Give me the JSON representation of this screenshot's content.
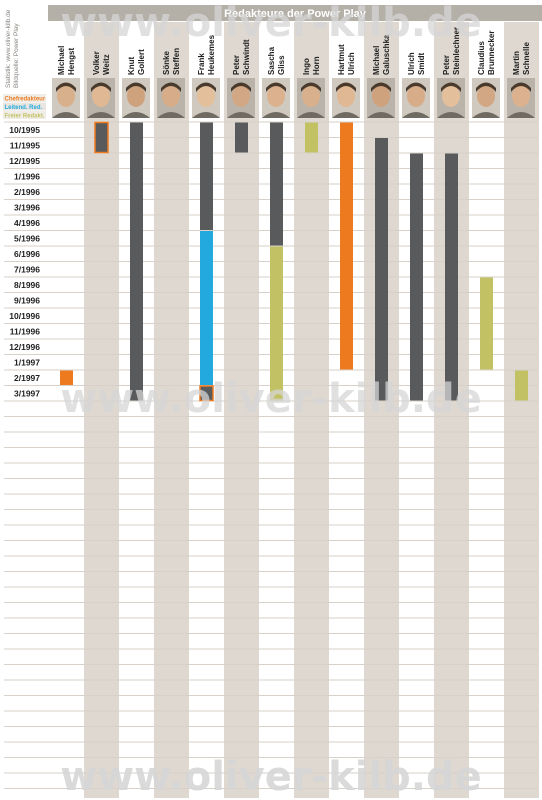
{
  "colors": {
    "column": "#ded8d0",
    "header_bg": "#b4b0a8",
    "rule": "#d7d1c9",
    "chefredakteur": "#ee7a1f",
    "leitender": "#23a9dd",
    "freier": "#c2c265",
    "redakteur": "#595a5c",
    "watermark": "#d6d6d6"
  },
  "credits": {
    "line1": "Statistik: www.oliver-kilb.de",
    "line2": "Bildquelle: Power Play"
  },
  "watermark": "www.oliver-kilb.de",
  "chart_data": {
    "type": "table",
    "title": "Redakteure der Power Play",
    "legend": [
      {
        "key": "chefredakteur",
        "label": "Chefredakteur",
        "color": "#ee7a1f"
      },
      {
        "key": "leitender",
        "label": "Leitend. Red.",
        "color": "#23a9dd"
      },
      {
        "key": "freier",
        "label": "Freier Redakt.",
        "color": "#c2c265"
      }
    ],
    "months": [
      "10/1995",
      "11/1995",
      "12/1995",
      "1/1996",
      "2/1996",
      "3/1996",
      "4/1996",
      "5/1996",
      "6/1996",
      "7/1996",
      "8/1996",
      "9/1996",
      "10/1996",
      "11/1996",
      "12/1996",
      "1/1997",
      "2/1997",
      "3/1997"
    ],
    "editors": [
      {
        "first": "Michael",
        "last": "Hengst",
        "spans": [
          {
            "from": "2/1997",
            "to": "2/1997",
            "role": "chefredakteur"
          }
        ]
      },
      {
        "first": "Volker",
        "last": "Weitz",
        "spans": [
          {
            "from": "10/1995",
            "to": "11/1995",
            "role": "redakteur",
            "outline": "chefredakteur"
          }
        ]
      },
      {
        "first": "Knut",
        "last": "Gollert",
        "spans": [
          {
            "from": "10/1995",
            "to": "3/1997",
            "role": "redakteur"
          }
        ]
      },
      {
        "first": "Sönke",
        "last": "Steffen",
        "spans": []
      },
      {
        "first": "Frank",
        "last": "Heukemes",
        "spans": [
          {
            "from": "10/1995",
            "to": "4/1996",
            "role": "redakteur"
          },
          {
            "from": "5/1996",
            "to": "2/1997",
            "role": "leitender"
          },
          {
            "from": "3/1997",
            "to": "3/1997",
            "role": "redakteur",
            "outline": "chefredakteur"
          }
        ]
      },
      {
        "first": "Peter",
        "last": "Schwindt",
        "spans": [
          {
            "from": "10/1995",
            "to": "11/1995",
            "role": "redakteur"
          }
        ]
      },
      {
        "first": "Sascha",
        "last": "Gliss",
        "spans": [
          {
            "from": "10/1995",
            "to": "5/1996",
            "role": "redakteur"
          },
          {
            "from": "6/1996",
            "to": "3/1997",
            "role": "freier"
          }
        ]
      },
      {
        "first": "Ingo",
        "last": "Horn",
        "spans": [
          {
            "from": "10/1995",
            "to": "11/1995",
            "role": "freier"
          }
        ]
      },
      {
        "first": "Hartmut",
        "last": "Ulrich",
        "spans": [
          {
            "from": "10/1995",
            "to": "1/1997",
            "role": "chefredakteur"
          }
        ]
      },
      {
        "first": "Michael",
        "last": "Galuschka",
        "spans": [
          {
            "from": "11/1995",
            "to": "3/1997",
            "role": "redakteur"
          }
        ]
      },
      {
        "first": "Ulrich",
        "last": "Smidt",
        "spans": [
          {
            "from": "12/1995",
            "to": "3/1997",
            "role": "redakteur"
          }
        ]
      },
      {
        "first": "Peter",
        "last": "Steinlechner",
        "spans": [
          {
            "from": "12/1995",
            "to": "3/1997",
            "role": "redakteur"
          }
        ]
      },
      {
        "first": "Claudius",
        "last": "Brunnecker",
        "spans": [
          {
            "from": "8/1996",
            "to": "1/1997",
            "role": "freier"
          }
        ]
      },
      {
        "first": "Martin",
        "last": "Schnelle",
        "spans": [
          {
            "from": "2/1997",
            "to": "3/1997",
            "role": "freier"
          }
        ]
      }
    ]
  }
}
